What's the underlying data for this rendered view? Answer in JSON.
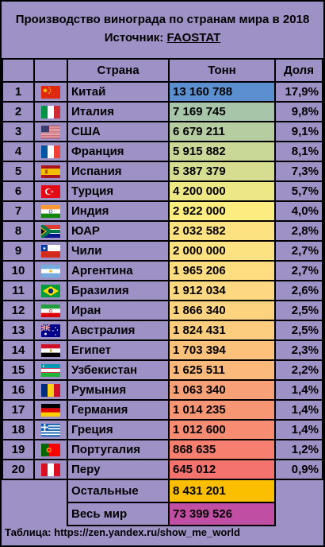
{
  "header": {
    "title": "Производство винограда по странам мира в 2018",
    "source_label": "Источник:",
    "source_name": "FAOSTAT"
  },
  "columns": {
    "country": "Страна",
    "tonnes": "Тонн",
    "share": "Доля"
  },
  "rows": [
    {
      "rank": "1",
      "country": "Китай",
      "tonnes": "13 160 788",
      "share": "17,9%",
      "flag": "cn-flag-icon",
      "color": "#5b8fd0"
    },
    {
      "rank": "2",
      "country": "Италия",
      "tonnes": "7 169 745",
      "share": "9,8%",
      "flag": "it-flag-icon",
      "color": "#a6c5a9"
    },
    {
      "rank": "3",
      "country": "США",
      "tonnes": "6 679 211",
      "share": "9,1%",
      "flag": "us-flag-icon",
      "color": "#b6cca1"
    },
    {
      "rank": "4",
      "country": "Франция",
      "tonnes": "5 915 882",
      "share": "8,1%",
      "flag": "fr-flag-icon",
      "color": "#c9d797"
    },
    {
      "rank": "5",
      "country": "Испания",
      "tonnes": "5 387 379",
      "share": "7,3%",
      "flag": "es-flag-icon",
      "color": "#d6dd91"
    },
    {
      "rank": "6",
      "country": "Турция",
      "tonnes": "4 200 000",
      "share": "5,7%",
      "flag": "tr-flag-icon",
      "color": "#eee785"
    },
    {
      "rank": "7",
      "country": "Индия",
      "tonnes": "2 922 000",
      "share": "4,0%",
      "flag": "in-flag-icon",
      "color": "#fdec80"
    },
    {
      "rank": "8",
      "country": "ЮАР",
      "tonnes": "2 032 582",
      "share": "2,8%",
      "flag": "za-flag-icon",
      "color": "#fee281"
    },
    {
      "rank": "9",
      "country": "Чили",
      "tonnes": "2 000 000",
      "share": "2,7%",
      "flag": "cl-flag-icon",
      "color": "#fee181"
    },
    {
      "rank": "10",
      "country": "Аргентина",
      "tonnes": "1 965 206",
      "share": "2,7%",
      "flag": "ar-flag-icon",
      "color": "#fedd80"
    },
    {
      "rank": "11",
      "country": "Бразилия",
      "tonnes": "1 912 034",
      "share": "2,6%",
      "flag": "br-flag-icon",
      "color": "#fdd880"
    },
    {
      "rank": "12",
      "country": "Иран",
      "tonnes": "1 866 340",
      "share": "2,5%",
      "flag": "ir-flag-icon",
      "color": "#fdd37f"
    },
    {
      "rank": "13",
      "country": "Австралия",
      "tonnes": "1 824 431",
      "share": "2,5%",
      "flag": "au-flag-icon",
      "color": "#fccd7e"
    },
    {
      "rank": "14",
      "country": "Египет",
      "tonnes": "1 703 394",
      "share": "2,3%",
      "flag": "eg-flag-icon",
      "color": "#fcc27c"
    },
    {
      "rank": "15",
      "country": "Узбекистан",
      "tonnes": "1 625 511",
      "share": "2,2%",
      "flag": "uz-flag-icon",
      "color": "#fbba7b"
    },
    {
      "rank": "16",
      "country": "Румыния",
      "tonnes": "1 063 340",
      "share": "1,4%",
      "flag": "ro-flag-icon",
      "color": "#f8a077"
    },
    {
      "rank": "17",
      "country": "Германия",
      "tonnes": "1 014 235",
      "share": "1,4%",
      "flag": "de-flag-icon",
      "color": "#f79675"
    },
    {
      "rank": "18",
      "country": "Греция",
      "tonnes": "1 012 600",
      "share": "1,4%",
      "flag": "gr-flag-icon",
      "color": "#f78c73"
    },
    {
      "rank": "19",
      "country": "Португалия",
      "tonnes": "868 635",
      "share": "1,2%",
      "flag": "pt-flag-icon",
      "color": "#f67f70"
    },
    {
      "rank": "20",
      "country": "Перу",
      "tonnes": "645 012",
      "share": "0,9%",
      "flag": "pe-flag-icon",
      "color": "#f5736e"
    }
  ],
  "totals": {
    "others_label": "Остальные",
    "others_value": "8 431 201",
    "others_color": "#fbbf00",
    "world_label": "Весь мир",
    "world_value": "73 399 526",
    "world_color": "#c04fa3"
  },
  "footer": "Таблица: https://zen.yandex.ru/show_me_world"
}
